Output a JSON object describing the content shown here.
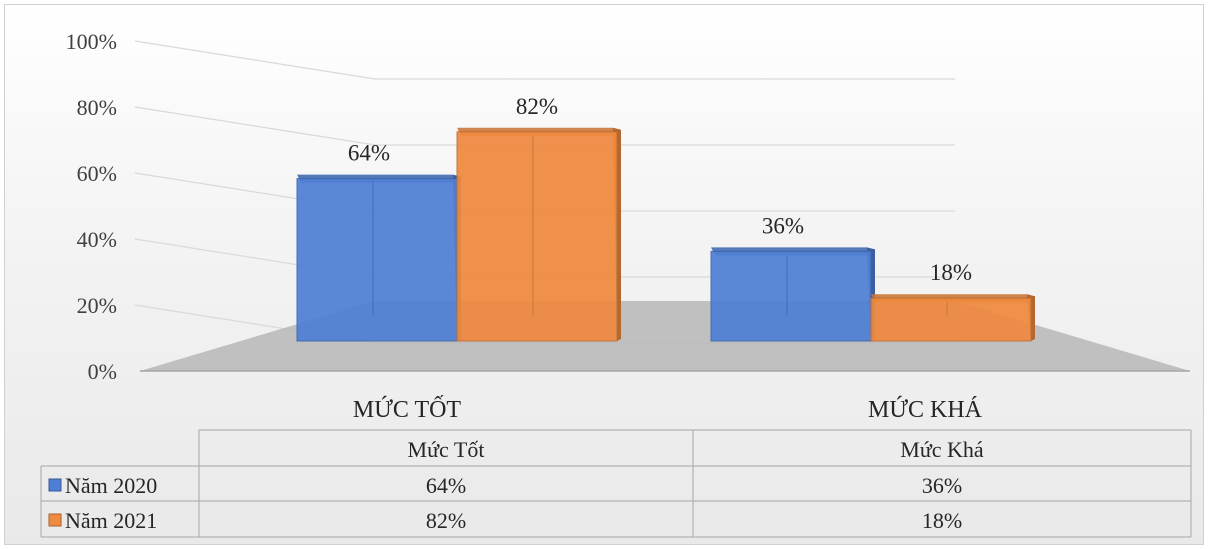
{
  "chart_data": {
    "type": "bar",
    "categories": [
      "MỨC TỐT",
      "MỨC KHÁ"
    ],
    "series": [
      {
        "name": "Năm 2020",
        "values": [
          64,
          36
        ],
        "labels": [
          "64%",
          "36%"
        ],
        "color": "#4f7fd4"
      },
      {
        "name": "Năm 2021",
        "values": [
          82,
          18
        ],
        "labels": [
          "82%",
          "18%"
        ],
        "color": "#ef8a3f"
      }
    ],
    "y_ticks": [
      "0%",
      "20%",
      "40%",
      "60%",
      "80%",
      "100%"
    ],
    "ylim": [
      0,
      100
    ],
    "grid": true,
    "legend": "data-table",
    "data_table": {
      "headers": [
        "Mức Tốt",
        "Mức Khá"
      ],
      "rows": [
        {
          "name": "Năm 2020",
          "cells": [
            "64%",
            "36%"
          ]
        },
        {
          "name": "Năm 2021",
          "cells": [
            "82%",
            "18%"
          ]
        }
      ]
    }
  }
}
